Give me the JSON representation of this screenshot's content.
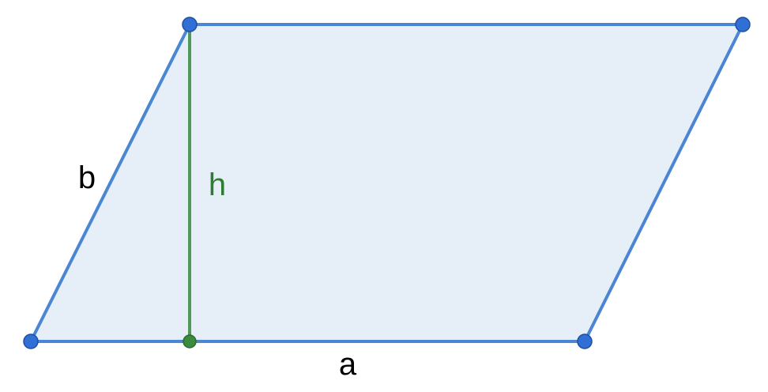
{
  "diagram": {
    "labels": {
      "side_a": "a",
      "side_b": "b",
      "height": "h"
    },
    "colors": {
      "fill": "#e6eef8",
      "edge": "#4a86d4",
      "vertex": "#2f6fd6",
      "vertex_stroke": "#1f4f9c",
      "height_line": "#4f9a59",
      "height_foot": "#3a8a40",
      "height_foot_stroke": "#2c6a30",
      "label_text": "#000000",
      "height_label_text": "#2e7d32"
    }
  }
}
